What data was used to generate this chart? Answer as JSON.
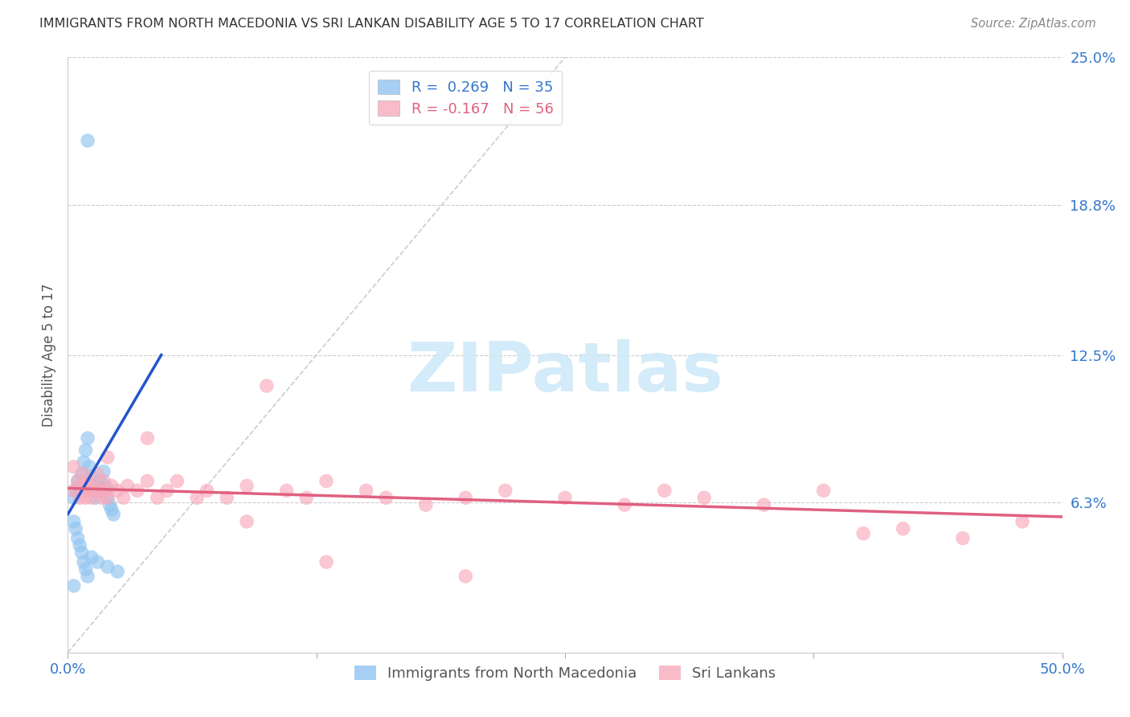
{
  "title": "IMMIGRANTS FROM NORTH MACEDONIA VS SRI LANKAN DISABILITY AGE 5 TO 17 CORRELATION CHART",
  "source": "Source: ZipAtlas.com",
  "ylabel": "Disability Age 5 to 17",
  "xlim": [
    0.0,
    0.5
  ],
  "ylim": [
    0.0,
    0.25
  ],
  "xtick_positions": [
    0.0,
    0.125,
    0.25,
    0.375,
    0.5
  ],
  "xtick_labels": [
    "0.0%",
    "",
    "",
    "",
    "50.0%"
  ],
  "ytick_labels_right": [
    "6.3%",
    "12.5%",
    "18.8%",
    "25.0%"
  ],
  "yticks_right": [
    0.063,
    0.125,
    0.188,
    0.25
  ],
  "blue_color": "#90c4f0",
  "pink_color": "#f8aabb",
  "blue_line_color": "#2255cc",
  "pink_line_color": "#e06080",
  "diag_color": "#cccccc",
  "watermark_text": "ZIPatlas",
  "watermark_color": "#cde8f8",
  "blue_label_r": "R =  0.269",
  "blue_label_n": "N = 35",
  "pink_label_r": "R = -0.167",
  "pink_label_n": "N = 56",
  "blue_scatter_x": [
    0.003,
    0.004,
    0.005,
    0.006,
    0.007,
    0.008,
    0.009,
    0.01,
    0.011,
    0.012,
    0.013,
    0.014,
    0.015,
    0.016,
    0.017,
    0.018,
    0.019,
    0.02,
    0.021,
    0.022,
    0.023,
    0.003,
    0.004,
    0.005,
    0.006,
    0.007,
    0.008,
    0.009,
    0.01,
    0.012,
    0.015,
    0.02,
    0.025,
    0.01,
    0.003
  ],
  "blue_scatter_y": [
    0.065,
    0.068,
    0.072,
    0.07,
    0.075,
    0.08,
    0.085,
    0.09,
    0.078,
    0.074,
    0.068,
    0.065,
    0.07,
    0.072,
    0.068,
    0.076,
    0.07,
    0.065,
    0.062,
    0.06,
    0.058,
    0.055,
    0.052,
    0.048,
    0.045,
    0.042,
    0.038,
    0.035,
    0.032,
    0.04,
    0.038,
    0.036,
    0.034,
    0.215,
    0.028
  ],
  "pink_scatter_x": [
    0.003,
    0.005,
    0.006,
    0.007,
    0.008,
    0.009,
    0.01,
    0.011,
    0.012,
    0.013,
    0.014,
    0.015,
    0.016,
    0.017,
    0.018,
    0.019,
    0.02,
    0.022,
    0.025,
    0.028,
    0.03,
    0.035,
    0.04,
    0.045,
    0.05,
    0.055,
    0.065,
    0.07,
    0.08,
    0.09,
    0.1,
    0.11,
    0.12,
    0.13,
    0.15,
    0.16,
    0.18,
    0.2,
    0.22,
    0.25,
    0.28,
    0.3,
    0.32,
    0.35,
    0.38,
    0.4,
    0.42,
    0.45,
    0.48,
    0.003,
    0.008,
    0.02,
    0.04,
    0.09,
    0.13,
    0.2
  ],
  "pink_scatter_y": [
    0.068,
    0.072,
    0.065,
    0.07,
    0.068,
    0.065,
    0.072,
    0.068,
    0.065,
    0.07,
    0.068,
    0.075,
    0.068,
    0.065,
    0.072,
    0.068,
    0.065,
    0.07,
    0.068,
    0.065,
    0.07,
    0.068,
    0.072,
    0.065,
    0.068,
    0.072,
    0.065,
    0.068,
    0.065,
    0.07,
    0.112,
    0.068,
    0.065,
    0.072,
    0.068,
    0.065,
    0.062,
    0.065,
    0.068,
    0.065,
    0.062,
    0.068,
    0.065,
    0.062,
    0.068,
    0.05,
    0.052,
    0.048,
    0.055,
    0.078,
    0.075,
    0.082,
    0.09,
    0.055,
    0.038,
    0.032
  ],
  "blue_regline_x": [
    0.0,
    0.047
  ],
  "blue_regline_y": [
    0.058,
    0.125
  ],
  "pink_regline_x": [
    0.0,
    0.5
  ],
  "pink_regline_y": [
    0.069,
    0.057
  ],
  "diag_line_x": [
    0.0,
    0.25
  ],
  "diag_line_y": [
    0.0,
    0.25
  ]
}
